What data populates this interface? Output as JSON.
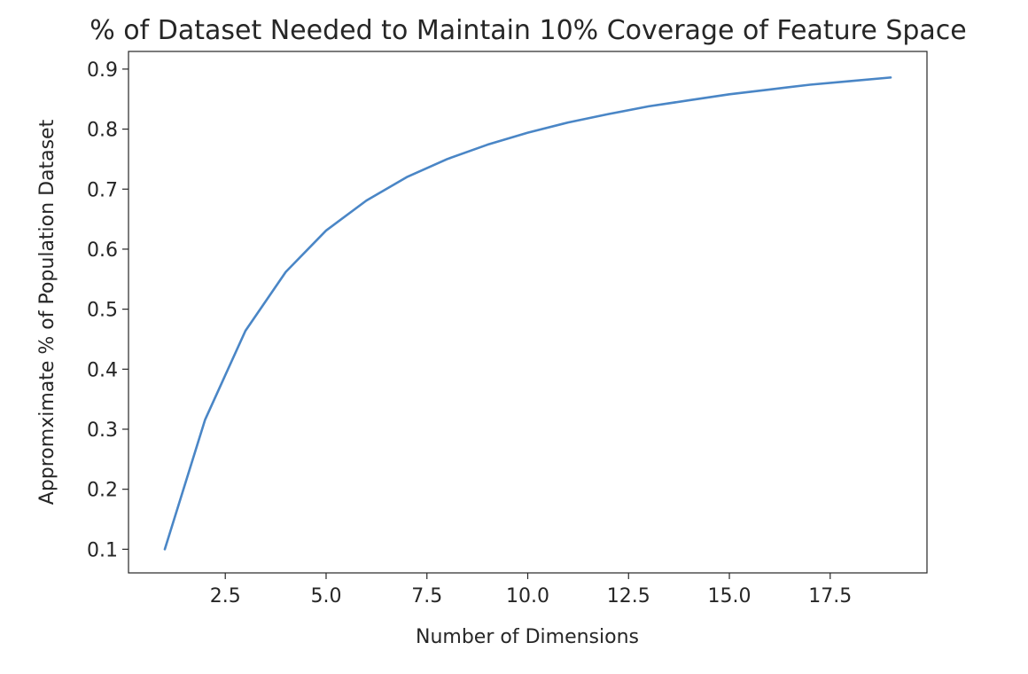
{
  "chart_data": {
    "type": "line",
    "title": "% of Dataset Needed to Maintain 10% Coverage of Feature Space",
    "xlabel": "Number of Dimensions",
    "ylabel": "Appromximate % of Population Dataset",
    "xlim": [
      0.1,
      19.9
    ],
    "ylim": [
      0.0606,
      0.9294
    ],
    "xticks": [
      {
        "value": 2.5,
        "label": "2.5"
      },
      {
        "value": 5.0,
        "label": "5.0"
      },
      {
        "value": 7.5,
        "label": "7.5"
      },
      {
        "value": 10.0,
        "label": "10.0"
      },
      {
        "value": 12.5,
        "label": "12.5"
      },
      {
        "value": 15.0,
        "label": "15.0"
      },
      {
        "value": 17.5,
        "label": "17.5"
      }
    ],
    "yticks": [
      {
        "value": 0.1,
        "label": "0.1"
      },
      {
        "value": 0.2,
        "label": "0.2"
      },
      {
        "value": 0.3,
        "label": "0.3"
      },
      {
        "value": 0.4,
        "label": "0.4"
      },
      {
        "value": 0.5,
        "label": "0.5"
      },
      {
        "value": 0.6,
        "label": "0.6"
      },
      {
        "value": 0.7,
        "label": "0.7"
      },
      {
        "value": 0.8,
        "label": "0.8"
      },
      {
        "value": 0.9,
        "label": "0.9"
      }
    ],
    "grid": false,
    "legend": "none",
    "series": [
      {
        "color": "#4a86c6",
        "x": [
          1,
          2,
          3,
          4,
          5,
          6,
          7,
          8,
          9,
          10,
          11,
          12,
          13,
          14,
          15,
          16,
          17,
          18,
          19
        ],
        "y": [
          0.1,
          0.316,
          0.464,
          0.562,
          0.631,
          0.681,
          0.72,
          0.75,
          0.774,
          0.794,
          0.811,
          0.825,
          0.838,
          0.848,
          0.858,
          0.866,
          0.874,
          0.88,
          0.886
        ]
      }
    ]
  }
}
